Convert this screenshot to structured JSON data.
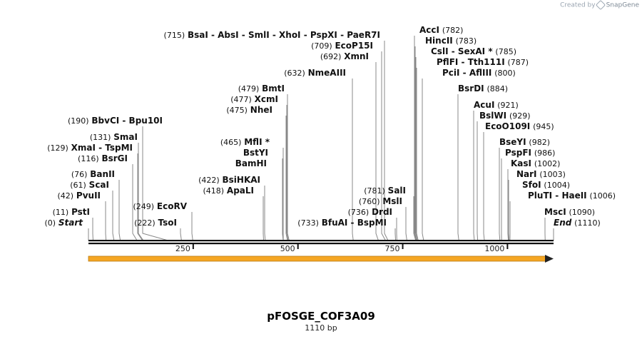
{
  "credit": {
    "prefix": "Created by",
    "brand": "SnapGene"
  },
  "map": {
    "name": "pFOSGE_COF3A09",
    "length_label": "1110 bp",
    "total_bp": 1110,
    "ticks": [
      250,
      500,
      750,
      1000
    ],
    "feature_color": "#f5a623",
    "enzymes": [
      {
        "name": "Start",
        "pos": 0,
        "pos_label": "(0)",
        "style": "italic",
        "lines": 1
      },
      {
        "name": "PstI",
        "pos": 11,
        "pos_label": "(11)"
      },
      {
        "name": "PvuII",
        "pos": 42,
        "pos_label": "(42)"
      },
      {
        "name": "ScaI",
        "pos": 61,
        "pos_label": "(61)"
      },
      {
        "name": "BanII",
        "pos": 76,
        "pos_label": "(76)"
      },
      {
        "name": "BsrGI",
        "pos": 116,
        "pos_label": "(116)"
      },
      {
        "name": "XmaI  -  TspMI",
        "pos": 129,
        "pos_label": "(129)"
      },
      {
        "name": "SmaI",
        "pos": 131,
        "pos_label": "(131)"
      },
      {
        "name": "BbvCI  -  Bpu10I",
        "pos": 190,
        "pos_label": "(190)"
      },
      {
        "name": "TsoI",
        "pos": 222,
        "pos_label": "(222)"
      },
      {
        "name": "EcoRV",
        "pos": 249,
        "pos_label": "(249)"
      },
      {
        "name": "ApaLI",
        "pos": 418,
        "pos_label": "(418)"
      },
      {
        "name": "BsiHKAI",
        "pos": 422,
        "pos_label": "(422)"
      },
      {
        "name": "BamHI",
        "pos": 465,
        "pos_label": ""
      },
      {
        "name": "BstYI",
        "pos": 465,
        "pos_label": ""
      },
      {
        "name": "MflI *",
        "pos": 465,
        "pos_label": "(465)"
      },
      {
        "name": "NheI",
        "pos": 475,
        "pos_label": "(475)"
      },
      {
        "name": "XcmI",
        "pos": 477,
        "pos_label": "(477)"
      },
      {
        "name": "BmtI",
        "pos": 479,
        "pos_label": "(479)"
      },
      {
        "name": "NmeAIII",
        "pos": 632,
        "pos_label": "(632)"
      },
      {
        "name": "XmnI",
        "pos": 692,
        "pos_label": "(692)"
      },
      {
        "name": "EcoP15I",
        "pos": 709,
        "pos_label": "(709)"
      },
      {
        "name": "BsaI  -  AbsI  -  SmlI  -  XhoI  -  PspXI  -  PaeR7I",
        "pos": 715,
        "pos_label": "(715)"
      },
      {
        "name": "BfuAI  -  BspMI",
        "pos": 733,
        "pos_label": "(733)"
      },
      {
        "name": "DrdI",
        "pos": 736,
        "pos_label": "(736)"
      },
      {
        "name": "MslI",
        "pos": 760,
        "pos_label": "(760)"
      },
      {
        "name": "SalI",
        "pos": 781,
        "pos_label": "(781)"
      },
      {
        "name": "AccI",
        "pos": 782,
        "pos_label": "(782)"
      },
      {
        "name": "HincII",
        "pos": 783,
        "pos_label": "(783)"
      },
      {
        "name": "CslI  -  SexAI *",
        "pos": 785,
        "pos_label": "(785)"
      },
      {
        "name": "PflFI  -  Tth111I",
        "pos": 787,
        "pos_label": "(787)"
      },
      {
        "name": "PciI  -  AflIII",
        "pos": 800,
        "pos_label": "(800)"
      },
      {
        "name": "BsrDI",
        "pos": 884,
        "pos_label": "(884)"
      },
      {
        "name": "AcuI",
        "pos": 921,
        "pos_label": "(921)"
      },
      {
        "name": "BslWI",
        "pos": 929,
        "pos_label": "(929)"
      },
      {
        "name": "EcoO109I",
        "pos": 945,
        "pos_label": "(945)"
      },
      {
        "name": "BseYI",
        "pos": 982,
        "pos_label": "(982)"
      },
      {
        "name": "PspFI",
        "pos": 986,
        "pos_label": "(986)"
      },
      {
        "name": "KasI",
        "pos": 1002,
        "pos_label": "(1002)"
      },
      {
        "name": "NarI",
        "pos": 1003,
        "pos_label": "(1003)"
      },
      {
        "name": "SfoI",
        "pos": 1004,
        "pos_label": "(1004)"
      },
      {
        "name": "PluTI  -  HaeII",
        "pos": 1006,
        "pos_label": "(1006)"
      },
      {
        "name": "MscI",
        "pos": 1090,
        "pos_label": "(1090)"
      },
      {
        "name": "End",
        "pos": 1110,
        "pos_label": "(1110)",
        "style": "italic"
      }
    ]
  }
}
